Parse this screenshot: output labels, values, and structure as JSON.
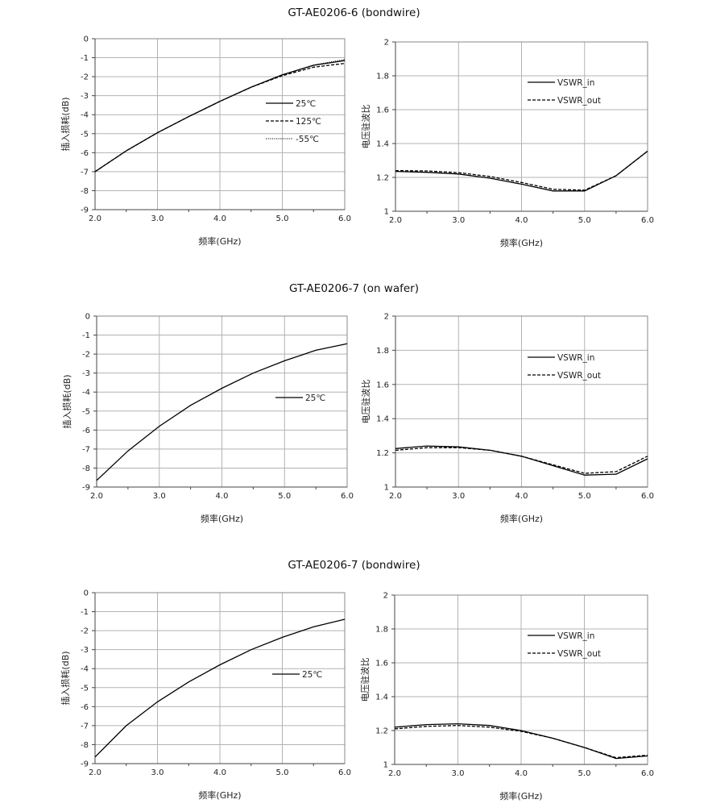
{
  "sections": [
    {
      "title": "GT-AE0206-6  (bondwire)"
    },
    {
      "title": "GT-AE0206-7  (on wafer)"
    },
    {
      "title": "GT-AE0206-7  (bondwire)"
    }
  ],
  "chart_data": [
    {
      "type": "line",
      "ylabel": "插入损耗(dB)",
      "xlabel": "频率(GHz)",
      "xlim": [
        2.0,
        6.0
      ],
      "ylim": [
        -9,
        0
      ],
      "xticks": [
        "2.0",
        "3.0",
        "4.0",
        "5.0",
        "6.0"
      ],
      "yticks": [
        "0",
        "-1",
        "-2",
        "-3",
        "-4",
        "-5",
        "-6",
        "-7",
        "-8",
        "-9"
      ],
      "grid": true,
      "legend": "center-right",
      "series": [
        {
          "name": "25℃",
          "style": "solid",
          "x": [
            2.0,
            2.5,
            3.0,
            3.5,
            4.0,
            4.5,
            5.0,
            5.5,
            6.0
          ],
          "values": [
            -7.0,
            -5.9,
            -4.95,
            -4.1,
            -3.3,
            -2.55,
            -1.9,
            -1.4,
            -1.15
          ]
        },
        {
          "name": "125℃",
          "style": "dashed",
          "x": [
            2.0,
            2.5,
            3.0,
            3.5,
            4.0,
            4.5,
            5.0,
            5.5,
            6.0
          ],
          "values": [
            -7.0,
            -5.9,
            -4.95,
            -4.1,
            -3.3,
            -2.55,
            -1.95,
            -1.5,
            -1.3
          ]
        },
        {
          "name": "-55℃",
          "style": "dotted",
          "x": [
            2.0,
            2.5,
            3.0,
            3.5,
            4.0,
            4.5,
            5.0,
            5.5,
            6.0
          ],
          "values": [
            -7.0,
            -5.9,
            -4.95,
            -4.1,
            -3.3,
            -2.55,
            -1.9,
            -1.38,
            -1.1
          ]
        }
      ]
    },
    {
      "type": "line",
      "ylabel": "电压驻波比",
      "xlabel": "频率(GHz)",
      "xlim": [
        2.0,
        6.0
      ],
      "ylim": [
        1,
        2
      ],
      "xticks": [
        "2.0",
        "3.0",
        "4.0",
        "5.0",
        "6.0"
      ],
      "yticks": [
        "2",
        "1.8",
        "1.6",
        "1.4",
        "1.2",
        "1"
      ],
      "grid": true,
      "legend": "top-right",
      "series": [
        {
          "name": "VSWR_in",
          "style": "solid",
          "x": [
            2.0,
            2.5,
            3.0,
            3.5,
            4.0,
            4.5,
            5.0,
            5.5,
            6.0
          ],
          "values": [
            1.235,
            1.23,
            1.22,
            1.195,
            1.16,
            1.12,
            1.12,
            1.21,
            1.355
          ]
        },
        {
          "name": "VSWR_out",
          "style": "dashed",
          "x": [
            2.0,
            2.5,
            3.0,
            3.5,
            4.0,
            4.5,
            5.0,
            5.5,
            6.0
          ],
          "values": [
            1.24,
            1.238,
            1.228,
            1.205,
            1.17,
            1.13,
            1.125,
            1.21,
            1.355
          ]
        }
      ]
    },
    {
      "type": "line",
      "ylabel": "插入损耗(dB)",
      "xlabel": "频率(GHz)",
      "xlim": [
        2.0,
        6.0
      ],
      "ylim": [
        -9,
        0
      ],
      "xticks": [
        "2.0",
        "3.0",
        "4.0",
        "5.0",
        "6.0"
      ],
      "yticks": [
        "0",
        "-1",
        "-2",
        "-3",
        "-4",
        "-5",
        "-6",
        "-7",
        "-8",
        "-9"
      ],
      "grid": true,
      "legend": "center-right",
      "series": [
        {
          "name": "25℃",
          "style": "solid",
          "x": [
            2.0,
            2.5,
            3.0,
            3.5,
            4.0,
            4.5,
            5.0,
            5.5,
            6.0
          ],
          "values": [
            -8.65,
            -7.1,
            -5.8,
            -4.7,
            -3.8,
            -3.0,
            -2.35,
            -1.8,
            -1.45
          ]
        }
      ]
    },
    {
      "type": "line",
      "ylabel": "电压驻波比",
      "xlabel": "频率(GHz)",
      "xlim": [
        2.0,
        6.0
      ],
      "ylim": [
        1,
        2
      ],
      "xticks": [
        "2.0",
        "3.0",
        "4.0",
        "5.0",
        "6.0"
      ],
      "yticks": [
        "2",
        "1.8",
        "1.6",
        "1.4",
        "1.2",
        "1"
      ],
      "grid": true,
      "legend": "top-right",
      "series": [
        {
          "name": "VSWR_in",
          "style": "solid",
          "x": [
            2.0,
            2.5,
            3.0,
            3.5,
            4.0,
            4.5,
            5.0,
            5.5,
            6.0
          ],
          "values": [
            1.225,
            1.24,
            1.235,
            1.215,
            1.18,
            1.125,
            1.07,
            1.075,
            1.165
          ]
        },
        {
          "name": "VSWR_out",
          "style": "dashed",
          "x": [
            2.0,
            2.5,
            3.0,
            3.5,
            4.0,
            4.5,
            5.0,
            5.5,
            6.0
          ],
          "values": [
            1.215,
            1.23,
            1.23,
            1.215,
            1.18,
            1.13,
            1.08,
            1.09,
            1.18
          ]
        }
      ]
    },
    {
      "type": "line",
      "ylabel": "插入损耗(dB)",
      "xlabel": "频率(GHz)",
      "xlim": [
        2.0,
        6.0
      ],
      "ylim": [
        -9,
        0
      ],
      "xticks": [
        "2.0",
        "3.0",
        "4.0",
        "5.0",
        "6.0"
      ],
      "yticks": [
        "0",
        "-1",
        "-2",
        "-3",
        "-4",
        "-5",
        "-6",
        "-7",
        "-8",
        "-9"
      ],
      "grid": true,
      "legend": "center-right",
      "series": [
        {
          "name": "25℃",
          "style": "solid",
          "x": [
            2.0,
            2.5,
            3.0,
            3.5,
            4.0,
            4.5,
            5.0,
            5.5,
            6.0
          ],
          "values": [
            -8.65,
            -7.0,
            -5.75,
            -4.7,
            -3.8,
            -3.0,
            -2.35,
            -1.8,
            -1.4
          ]
        }
      ]
    },
    {
      "type": "line",
      "ylabel": "电压驻波比",
      "xlabel": "频率(GHz)",
      "xlim": [
        2.0,
        6.0
      ],
      "ylim": [
        1,
        2
      ],
      "xticks": [
        "2.0",
        "3.0",
        "4.0",
        "5.0",
        "6.0"
      ],
      "yticks": [
        "2",
        "1.8",
        "1.6",
        "1.4",
        "1.2",
        "1"
      ],
      "grid": true,
      "legend": "top-right",
      "series": [
        {
          "name": "VSWR_in",
          "style": "solid",
          "x": [
            2.0,
            2.5,
            3.0,
            3.5,
            4.0,
            4.5,
            5.0,
            5.5,
            6.0
          ],
          "values": [
            1.22,
            1.235,
            1.24,
            1.23,
            1.2,
            1.155,
            1.1,
            1.035,
            1.05
          ]
        },
        {
          "name": "VSWR_out",
          "style": "dashed",
          "x": [
            2.0,
            2.5,
            3.0,
            3.5,
            4.0,
            4.5,
            5.0,
            5.5,
            6.0
          ],
          "values": [
            1.21,
            1.225,
            1.23,
            1.22,
            1.195,
            1.155,
            1.1,
            1.04,
            1.055
          ]
        }
      ]
    }
  ]
}
